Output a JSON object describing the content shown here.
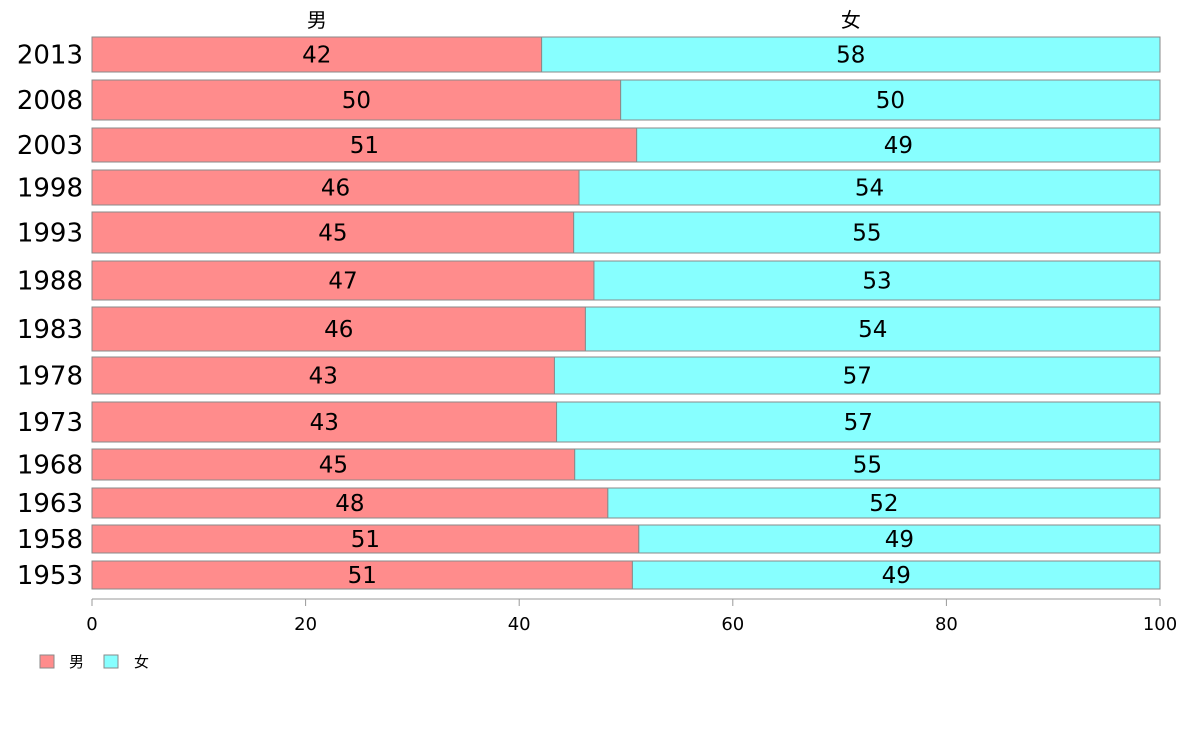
{
  "chart_data": {
    "type": "bar",
    "orientation": "horizontal",
    "stacked": "percent",
    "categories": [
      "2013",
      "2008",
      "2003",
      "1998",
      "1993",
      "1988",
      "1983",
      "1978",
      "1973",
      "1968",
      "1963",
      "1958",
      "1953"
    ],
    "series": [
      {
        "name": "男",
        "values": [
          42,
          50,
          51,
          46,
          45,
          47,
          46,
          43,
          43,
          45,
          48,
          51,
          51
        ]
      },
      {
        "name": "女",
        "values": [
          58,
          50,
          49,
          54,
          55,
          53,
          54,
          57,
          57,
          55,
          52,
          49,
          49
        ]
      }
    ],
    "segment_fractions_pct": {
      "男": [
        42.1,
        49.5,
        51.0,
        45.6,
        45.1,
        47.0,
        46.2,
        43.3,
        43.5,
        45.2,
        48.3,
        51.2,
        50.6
      ]
    },
    "xlim": [
      0,
      100
    ],
    "xticks": [
      0,
      20,
      40,
      60,
      80,
      100
    ],
    "column_headers": [
      "男",
      "女"
    ],
    "legend": {
      "position": "bottom-left",
      "entries": [
        "男",
        "女"
      ]
    },
    "colors": {
      "男": "#ff8c8c",
      "女": "#87ffff",
      "bar_border": "#8a8a8a",
      "axis": "#999999"
    },
    "grid": false
  }
}
